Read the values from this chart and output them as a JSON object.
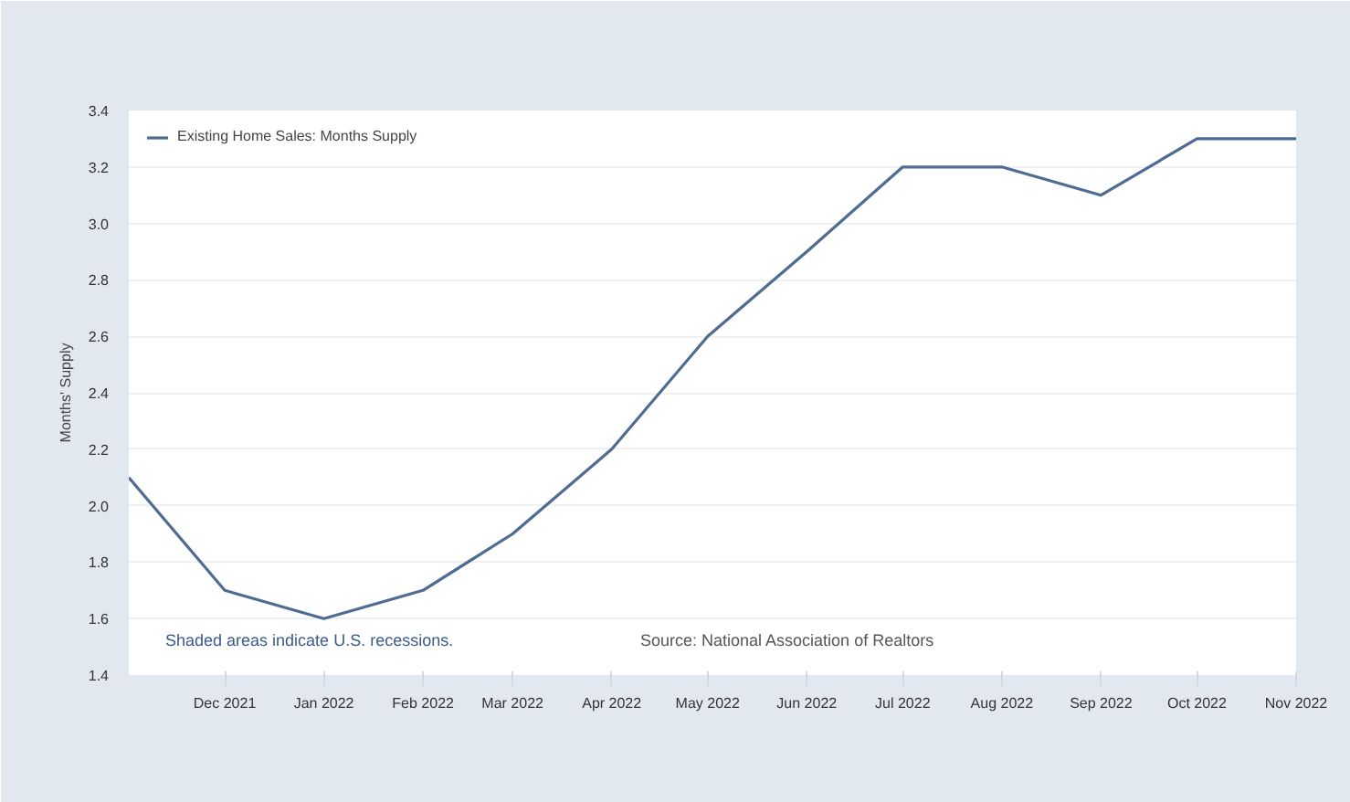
{
  "chart_data": {
    "type": "line",
    "ylabel": "Months' Supply",
    "x": [
      "2021-11",
      "2021-12",
      "2022-01",
      "2022-02",
      "2022-03",
      "2022-04",
      "2022-05",
      "2022-06",
      "2022-07",
      "2022-08",
      "2022-09",
      "2022-10",
      "2022-11"
    ],
    "series": [
      {
        "name": "Existing Home Sales: Months Supply",
        "color": "#4e6c91",
        "values": [
          2.1,
          1.7,
          1.6,
          1.7,
          1.9,
          2.2,
          2.6,
          2.9,
          3.2,
          3.2,
          3.1,
          3.3,
          3.3
        ]
      }
    ],
    "xlim": [
      "2021-11",
      "2022-11"
    ],
    "xticks": [
      {
        "value": "2021-12",
        "label": "Dec 2021"
      },
      {
        "value": "2022-01",
        "label": "Jan 2022"
      },
      {
        "value": "2022-02",
        "label": "Feb 2022"
      },
      {
        "value": "2022-03",
        "label": "Mar 2022"
      },
      {
        "value": "2022-04",
        "label": "Apr 2022"
      },
      {
        "value": "2022-05",
        "label": "May 2022"
      },
      {
        "value": "2022-06",
        "label": "Jun 2022"
      },
      {
        "value": "2022-07",
        "label": "Jul 2022"
      },
      {
        "value": "2022-08",
        "label": "Aug 2022"
      },
      {
        "value": "2022-09",
        "label": "Sep 2022"
      },
      {
        "value": "2022-10",
        "label": "Oct 2022"
      },
      {
        "value": "2022-11",
        "label": "Nov 2022"
      }
    ],
    "ylim": [
      1.4,
      3.4
    ],
    "yticks": [
      1.4,
      1.6,
      1.8,
      {
        "value": 2,
        "label": "2.0"
      },
      2.2,
      2.4,
      2.6,
      2.8,
      {
        "value": 3,
        "label": "3.0"
      },
      3.2,
      3.4
    ],
    "grid": "y",
    "legend": "top left",
    "marker": "none",
    "line_style": "solid",
    "annotations": [
      "Shaded areas indicate U.S. recessions.",
      "Source: National Association of Realtors"
    ]
  }
}
